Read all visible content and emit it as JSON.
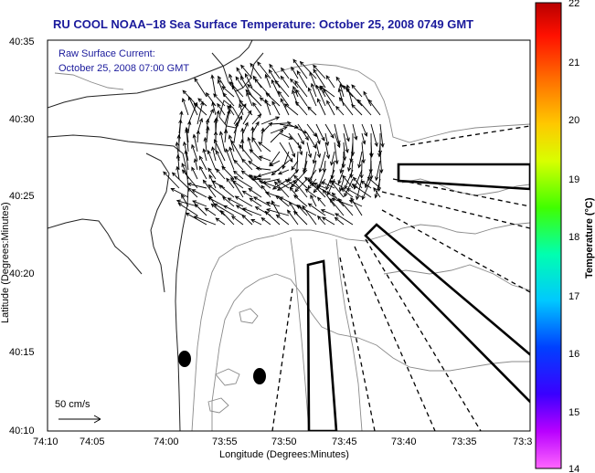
{
  "title": "RU COOL  NOAA−18  Sea Surface Temperature:  October 25, 2008 0749 GMT",
  "annotation": {
    "line1": "Raw Surface Current:",
    "line2": "October 25, 2008 07:00 GMT"
  },
  "scale_label": "50 cm/s",
  "axes": {
    "xlabel": "Longitude (Degrees:Minutes)",
    "ylabel": "Latitude (Degrees:Minutes)",
    "x_ticks": [
      "74:10",
      "74:05",
      "74:00",
      "73:55",
      "73:50",
      "73:45",
      "73:40",
      "73:35",
      "73:3"
    ],
    "y_ticks": [
      "40:35",
      "40:30",
      "40:25",
      "40:20",
      "40:15",
      "40:10"
    ]
  },
  "colorbar": {
    "label": "Temperature (°C)",
    "ticks": [
      "22",
      "21",
      "20",
      "19",
      "18",
      "17",
      "16",
      "15",
      "14"
    ],
    "min": 14,
    "max": 22
  },
  "chart_data": {
    "type": "map",
    "title": "RU COOL  NOAA−18  Sea Surface Temperature:  October 25, 2008 0749 GMT",
    "xlabel": "Longitude (Degrees:Minutes)",
    "ylabel": "Latitude (Degrees:Minutes)",
    "colorbar_range": [
      14,
      22
    ]
  }
}
